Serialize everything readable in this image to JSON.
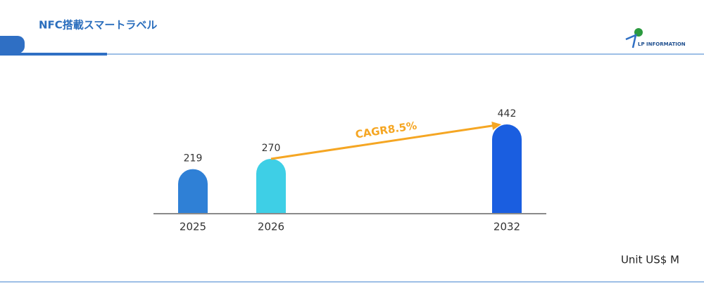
{
  "header": {
    "title": "NFC搭載スマートラベル",
    "logo": "LP INFORMATION"
  },
  "chart_data": {
    "type": "bar",
    "categories": [
      "2025",
      "2026",
      "2032"
    ],
    "values": [
      219,
      270,
      442
    ],
    "colors": [
      "#2f80d6",
      "#3ecfe6",
      "#1a5ee0"
    ],
    "annotation": "CAGR8.5%",
    "unit": "Unit US$ M"
  }
}
